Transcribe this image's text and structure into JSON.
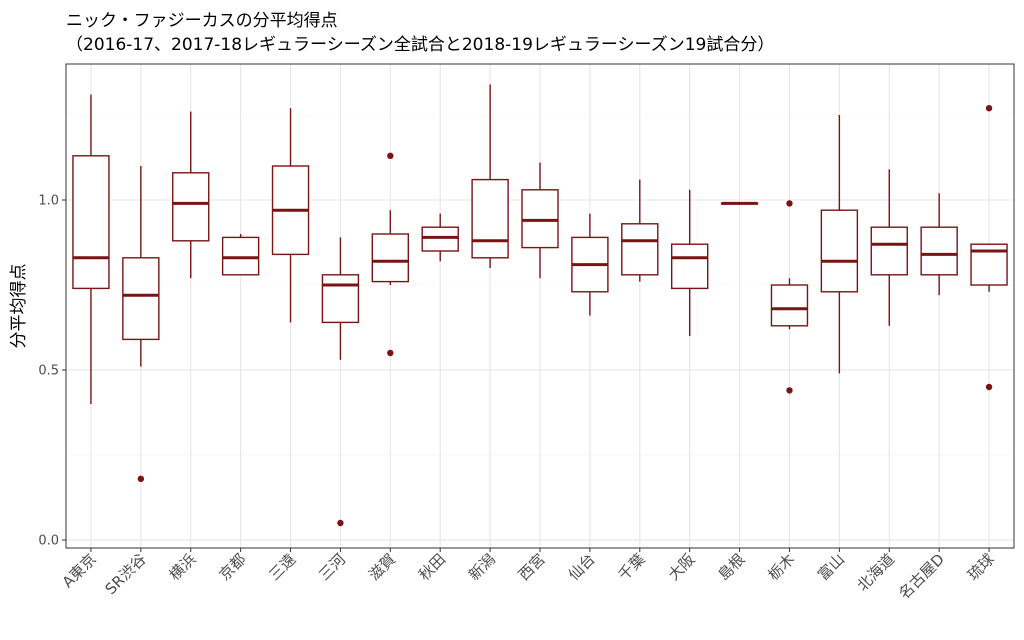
{
  "chart_data": {
    "type": "box",
    "title": "ニック・ファジーカスの分平均得点",
    "subtitle": "（2016-17、2017-18レギュラーシーズン全試合と2018-19レギュラーシーズン19試合分）",
    "xlabel": "",
    "ylabel": "分平均得点",
    "ylim": [
      0,
      1.35
    ],
    "yticks": [
      0.0,
      0.5,
      1.0
    ],
    "ytick_labels": [
      "0.0",
      "0.5",
      "1.0"
    ],
    "grid": true,
    "color": "#7a1414",
    "categories": [
      "A東京",
      "SR渋谷",
      "横浜",
      "京都",
      "三遠",
      "三河",
      "滋賀",
      "秋田",
      "新潟",
      "西宮",
      "仙台",
      "千葉",
      "大阪",
      "島根",
      "栃木",
      "富山",
      "北海道",
      "名古屋D",
      "琉球"
    ],
    "boxes": [
      {
        "low": 0.4,
        "q1": 0.74,
        "median": 0.83,
        "q3": 1.13,
        "high": 1.31,
        "outliers": []
      },
      {
        "low": 0.51,
        "q1": 0.59,
        "median": 0.72,
        "q3": 0.83,
        "high": 1.1,
        "outliers": [
          0.18
        ]
      },
      {
        "low": 0.77,
        "q1": 0.88,
        "median": 0.99,
        "q3": 1.08,
        "high": 1.26,
        "outliers": []
      },
      {
        "low": 0.78,
        "q1": 0.78,
        "median": 0.83,
        "q3": 0.89,
        "high": 0.9,
        "outliers": []
      },
      {
        "low": 0.64,
        "q1": 0.84,
        "median": 0.97,
        "q3": 1.1,
        "high": 1.27,
        "outliers": []
      },
      {
        "low": 0.53,
        "q1": 0.64,
        "median": 0.75,
        "q3": 0.78,
        "high": 0.89,
        "outliers": [
          0.05
        ]
      },
      {
        "low": 0.75,
        "q1": 0.76,
        "median": 0.82,
        "q3": 0.9,
        "high": 0.97,
        "outliers": [
          1.13,
          0.55
        ]
      },
      {
        "low": 0.82,
        "q1": 0.85,
        "median": 0.89,
        "q3": 0.92,
        "high": 0.96,
        "outliers": []
      },
      {
        "low": 0.8,
        "q1": 0.83,
        "median": 0.88,
        "q3": 1.06,
        "high": 1.34,
        "outliers": []
      },
      {
        "low": 0.77,
        "q1": 0.86,
        "median": 0.94,
        "q3": 1.03,
        "high": 1.11,
        "outliers": []
      },
      {
        "low": 0.66,
        "q1": 0.73,
        "median": 0.81,
        "q3": 0.89,
        "high": 0.96,
        "outliers": []
      },
      {
        "low": 0.76,
        "q1": 0.78,
        "median": 0.88,
        "q3": 0.93,
        "high": 1.06,
        "outliers": []
      },
      {
        "low": 0.6,
        "q1": 0.74,
        "median": 0.83,
        "q3": 0.87,
        "high": 1.03,
        "outliers": []
      },
      {
        "low": 0.99,
        "q1": 0.99,
        "median": 0.99,
        "q3": 0.99,
        "high": 0.99,
        "outliers": []
      },
      {
        "low": 0.62,
        "q1": 0.63,
        "median": 0.68,
        "q3": 0.75,
        "high": 0.77,
        "outliers": [
          0.99,
          0.44
        ]
      },
      {
        "low": 0.49,
        "q1": 0.73,
        "median": 0.82,
        "q3": 0.97,
        "high": 1.25,
        "outliers": []
      },
      {
        "low": 0.63,
        "q1": 0.78,
        "median": 0.87,
        "q3": 0.92,
        "high": 1.09,
        "outliers": []
      },
      {
        "low": 0.72,
        "q1": 0.78,
        "median": 0.84,
        "q3": 0.92,
        "high": 1.02,
        "outliers": []
      },
      {
        "low": 0.73,
        "q1": 0.75,
        "median": 0.85,
        "q3": 0.87,
        "high": 0.87,
        "outliers": [
          1.27,
          0.45
        ]
      }
    ]
  }
}
